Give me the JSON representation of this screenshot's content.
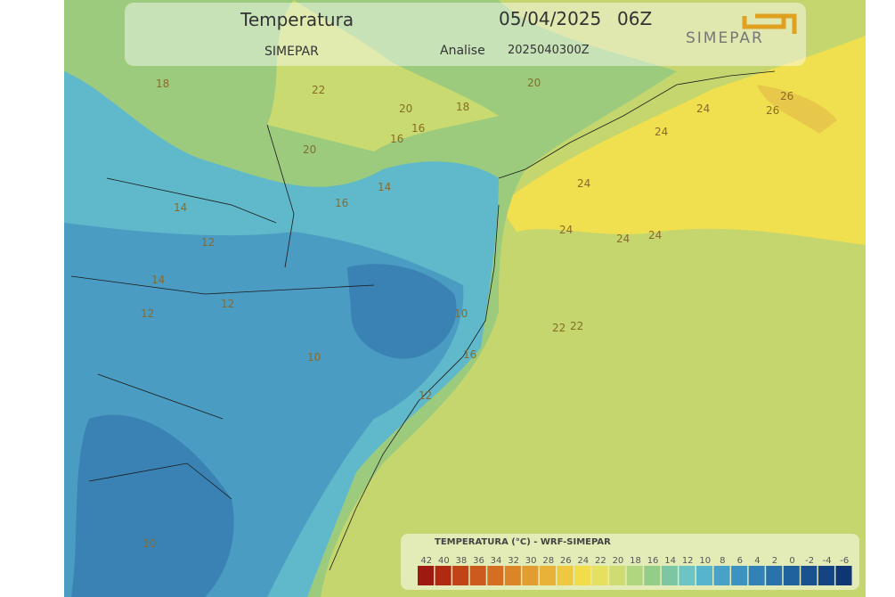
{
  "header": {
    "title": "Temperatura",
    "date": "05/04/2025",
    "hour": "06Z",
    "source": "SIMEPAR",
    "analysis_label": "Analise",
    "analysis_time": "2025040300Z",
    "logo": "SIMEPAR"
  },
  "map": {
    "contour_labels": [
      "18",
      "22",
      "20",
      "18",
      "16",
      "16",
      "20",
      "20",
      "26",
      "26",
      "24",
      "24",
      "24",
      "24",
      "24",
      "14",
      "14",
      "16",
      "12",
      "12",
      "12",
      "10",
      "22",
      "22",
      "16",
      "12",
      "10",
      "14",
      "10",
      "24"
    ]
  },
  "legend": {
    "title": "TEMPERATURA (°C)  - WRF-SIMEPAR",
    "entries": [
      {
        "value": 42,
        "color": "#9e1a10"
      },
      {
        "value": 40,
        "color": "#b02a12"
      },
      {
        "value": 38,
        "color": "#c04416"
      },
      {
        "value": 36,
        "color": "#cc5a1c"
      },
      {
        "value": 34,
        "color": "#d46e22"
      },
      {
        "value": 32,
        "color": "#dc8428"
      },
      {
        "value": 30,
        "color": "#e29c30"
      },
      {
        "value": 28,
        "color": "#e8b238"
      },
      {
        "value": 26,
        "color": "#eec840"
      },
      {
        "value": 24,
        "color": "#f2dc4a"
      },
      {
        "value": 22,
        "color": "#e6e060"
      },
      {
        "value": 20,
        "color": "#cfdc72"
      },
      {
        "value": 18,
        "color": "#b0d680"
      },
      {
        "value": 16,
        "color": "#94cc8a"
      },
      {
        "value": 14,
        "color": "#7cc6a4"
      },
      {
        "value": 12,
        "color": "#6cc4c4"
      },
      {
        "value": 10,
        "color": "#56b4cc"
      },
      {
        "value": 8,
        "color": "#48a2c8"
      },
      {
        "value": 6,
        "color": "#3c92c0"
      },
      {
        "value": 4,
        "color": "#3282b8"
      },
      {
        "value": 2,
        "color": "#2a72ac"
      },
      {
        "value": 0,
        "color": "#20629e"
      },
      {
        "value": -2,
        "color": "#1a5290"
      },
      {
        "value": -4,
        "color": "#144482"
      },
      {
        "value": -6,
        "color": "#0e3672"
      }
    ]
  }
}
